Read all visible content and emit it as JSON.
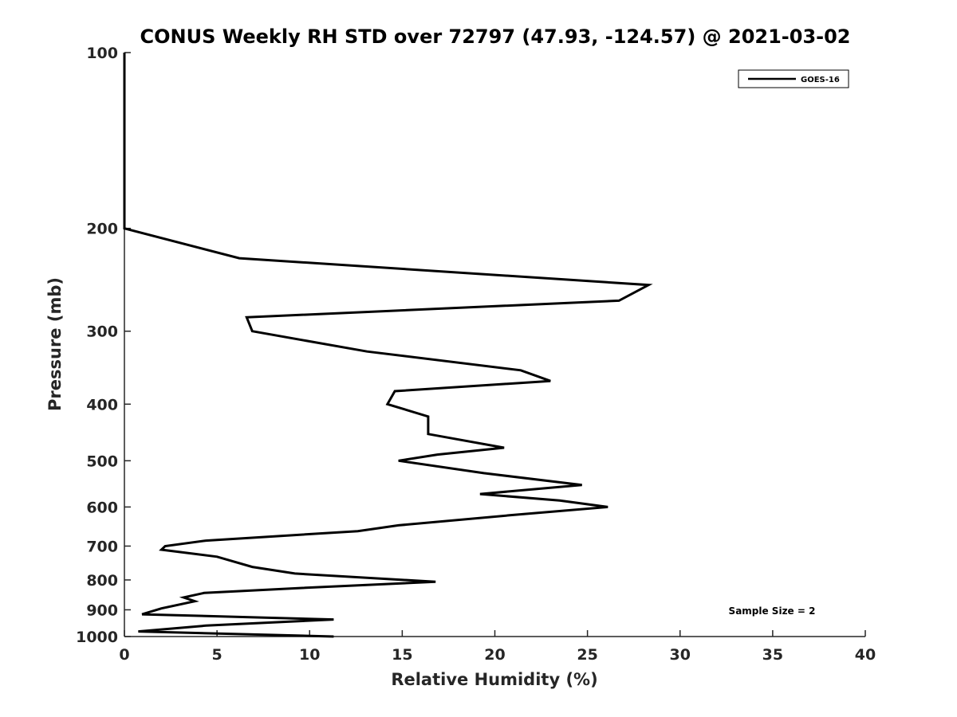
{
  "chart_data": {
    "type": "line",
    "title": "CONUS Weekly RH STD over 72797 (47.93, -124.57) @ 2021-03-02",
    "xlabel": "Relative Humidity (%)",
    "ylabel": "Pressure (mb)",
    "xlim": [
      0,
      40
    ],
    "ylim": [
      100,
      1000
    ],
    "y_scale": "log",
    "y_reversed": true,
    "x_ticks": [
      "0",
      "5",
      "10",
      "15",
      "20",
      "25",
      "30",
      "35",
      "40"
    ],
    "y_ticks": [
      "100",
      "200",
      "300",
      "400",
      "500",
      "600",
      "700",
      "800",
      "900",
      "1000"
    ],
    "grid": false,
    "legend_position": "top-right",
    "annotation": "Sample Size = 2",
    "series": [
      {
        "name": "GOES-16",
        "color": "#000000",
        "points": [
          [
            0.0,
            100
          ],
          [
            0.0,
            150
          ],
          [
            0.0,
            200
          ],
          [
            6.2,
            225
          ],
          [
            28.3,
            250
          ],
          [
            26.7,
            266
          ],
          [
            6.6,
            284
          ],
          [
            6.9,
            300
          ],
          [
            13.1,
            325
          ],
          [
            21.4,
            350
          ],
          [
            23.0,
            365
          ],
          [
            14.6,
            380
          ],
          [
            14.4,
            390
          ],
          [
            14.2,
            400
          ],
          [
            16.4,
            420
          ],
          [
            16.4,
            435
          ],
          [
            16.4,
            450
          ],
          [
            20.5,
            475
          ],
          [
            16.9,
            488
          ],
          [
            14.8,
            500
          ],
          [
            19.4,
            525
          ],
          [
            24.7,
            550
          ],
          [
            19.2,
            570
          ],
          [
            23.5,
            585
          ],
          [
            26.1,
            600
          ],
          [
            20.8,
            620
          ],
          [
            14.8,
            645
          ],
          [
            12.6,
            660
          ],
          [
            4.4,
            685
          ],
          [
            2.2,
            700
          ],
          [
            2.0,
            710
          ],
          [
            5.0,
            730
          ],
          [
            6.9,
            760
          ],
          [
            9.2,
            780
          ],
          [
            16.8,
            806
          ],
          [
            9.5,
            826
          ],
          [
            4.3,
            842
          ],
          [
            3.2,
            857
          ],
          [
            3.8,
            870
          ],
          [
            2.0,
            895
          ],
          [
            0.95,
            916
          ],
          [
            11.3,
            935
          ],
          [
            4.4,
            958
          ],
          [
            0.75,
            980
          ],
          [
            11.3,
            1000
          ]
        ]
      }
    ]
  }
}
